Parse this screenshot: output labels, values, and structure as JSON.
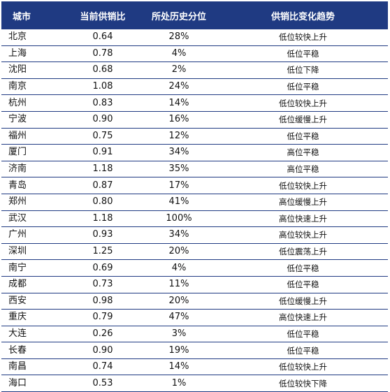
{
  "table": {
    "headers": [
      "城市",
      "当前供销比",
      "所处历史分位",
      "供销比变化趋势"
    ],
    "rows": [
      [
        "北京",
        "0.64",
        "28%",
        "低位较快上升"
      ],
      [
        "上海",
        "0.78",
        "4%",
        "低位平稳"
      ],
      [
        "沈阳",
        "0.68",
        "2%",
        "低位下降"
      ],
      [
        "南京",
        "1.08",
        "24%",
        "低位平稳"
      ],
      [
        "杭州",
        "0.83",
        "14%",
        "低位较快上升"
      ],
      [
        "宁波",
        "0.90",
        "16%",
        "低位缓慢上升"
      ],
      [
        "福州",
        "0.75",
        "12%",
        "低位平稳"
      ],
      [
        "厦门",
        "0.91",
        "34%",
        "高位平稳"
      ],
      [
        "济南",
        "1.18",
        "35%",
        "高位平稳"
      ],
      [
        "青岛",
        "0.87",
        "17%",
        "低位较快上升"
      ],
      [
        "郑州",
        "0.80",
        "41%",
        "高位缓慢上升"
      ],
      [
        "武汉",
        "1.18",
        "100%",
        "高位快速上升"
      ],
      [
        "广州",
        "0.93",
        "34%",
        "高位较快上升"
      ],
      [
        "深圳",
        "1.25",
        "20%",
        "低位震荡上升"
      ],
      [
        "南宁",
        "0.69",
        "4%",
        "低位平稳"
      ],
      [
        "成都",
        "0.73",
        "11%",
        "低位平稳"
      ],
      [
        "西安",
        "0.98",
        "20%",
        "低位缓慢上升"
      ],
      [
        "重庆",
        "0.79",
        "47%",
        "高位快速上升"
      ],
      [
        "大连",
        "0.26",
        "3%",
        "低位平稳"
      ],
      [
        "长春",
        "0.90",
        "19%",
        "低位平稳"
      ],
      [
        "南昌",
        "0.74",
        "14%",
        "低位较快上升"
      ],
      [
        "海口",
        "0.53",
        "1%",
        "低位较快下降"
      ]
    ]
  },
  "colors": {
    "header_bg": "#1f3a82",
    "header_text": "#ffffff",
    "row_rule": "#1f3a82"
  }
}
